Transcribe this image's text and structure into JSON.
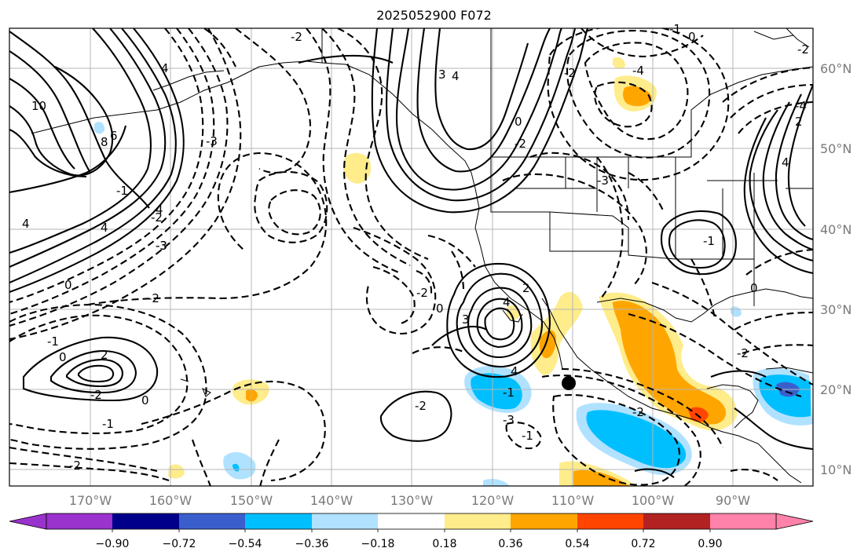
{
  "title": "2025052900 F072",
  "map": {
    "lon_labels": [
      "170°W",
      "160°W",
      "150°W",
      "140°W",
      "130°W",
      "120°W",
      "110°W",
      "100°W",
      "90°W"
    ],
    "lat_labels": [
      "60°N",
      "50°N",
      "40°N",
      "30°N",
      "20°N",
      "10°N"
    ],
    "contour_labels": [
      "10",
      "6",
      "8",
      "4",
      "4",
      "4",
      "0",
      "-1",
      "-2",
      "-3",
      "-3",
      "-2",
      "-2",
      "-2",
      "-1",
      "0",
      "2",
      "-2",
      "0",
      "-1",
      "-2",
      "-2",
      "3",
      "4",
      "0",
      "2",
      "-3",
      "-2",
      "-1",
      "-2",
      "-3",
      "0",
      "-1",
      "-4",
      "-2",
      "4",
      "3",
      "0",
      "-2",
      "-1",
      "-4",
      "2",
      "0",
      "-2",
      "4",
      "4",
      "-3",
      "-1",
      "4",
      "-2",
      "-2",
      "-2",
      "0",
      "2",
      "-2",
      "-2",
      "-4",
      "-3",
      "-2",
      "-3",
      "-2"
    ],
    "marker": "black-dot"
  },
  "colorbar": {
    "tick_labels": [
      "−0.90",
      "−0.72",
      "−0.54",
      "−0.36",
      "−0.18",
      "0.18",
      "0.36",
      "0.54",
      "0.72",
      "0.90"
    ],
    "colors": [
      "#9a32cd",
      "#00008b",
      "#3a5fcd",
      "#00bfff",
      "#b0e2ff",
      "#ffffff",
      "#ffec8b",
      "#ffa500",
      "#ff4500",
      "#b22222",
      "#ff82ab"
    ],
    "under_color": "#9a32cd",
    "over_color": "#ff82ab"
  }
}
